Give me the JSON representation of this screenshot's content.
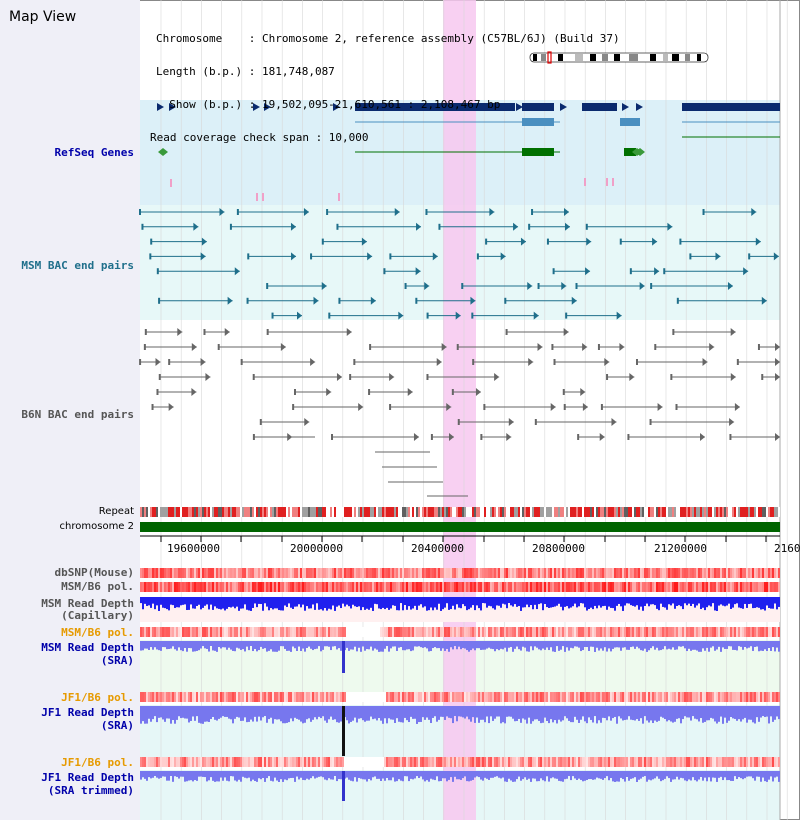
{
  "header": {
    "view_title": "Map View",
    "info_lines": [
      "Chromosome    : Chromosome 2, reference assembly (C57BL/6J) (Build 37)",
      "Length (b.p.) : 181,748,087",
      "  Show (b.p.) : 19,502,095-21,610,561 : 2,108,467 bp",
      "Read coverage check span : 10,000"
    ]
  },
  "tracks": {
    "refseq": "RefSeq Genes",
    "msm_bac": "MSM BAC end pairs",
    "b6n_bac": "B6N BAC end pairs",
    "repeat": "Repeat",
    "chromosome": "chromosome 2",
    "dbsnp": "dbSNP(Mouse)",
    "msm_b6_pol": "MSM/B6 pol.",
    "msm_read_depth_cap_1": "MSM Read Depth",
    "msm_read_depth_cap_2": "(Capillary)",
    "msm_b6_pol_sra": "MSM/B6 pol.",
    "msm_read_depth_sra_1": "MSM Read Depth",
    "msm_read_depth_sra_2": "(SRA)",
    "jf1_b6_pol": "JF1/B6 pol.",
    "jf1_read_depth_1": "JF1 Read Depth",
    "jf1_read_depth_2": "(SRA)",
    "jf1_b6_pol_trim": "JF1/B6 pol.",
    "jf1_read_depth_trim_1": "JF1 Read Depth",
    "jf1_read_depth_trim_2": "(SRA trimmed)"
  },
  "axis": {
    "ticks": [
      "19600000",
      "20000000",
      "20400000",
      "20800000",
      "21200000",
      "2160"
    ]
  },
  "colors": {
    "refseq_dark": "#0a2a6e",
    "refseq_mid": "#4a8fc0",
    "refseq_green": "#007000",
    "msm_bac": "#1f6f8b",
    "b6n_bac": "#666666",
    "label_blue": "#0000aa",
    "label_orange": "#e69a00",
    "highlight": "#f7c8f0",
    "chromosome_bar": "#006400",
    "depth_blue": "#2020ee",
    "depth_light": "#7777ee"
  }
}
